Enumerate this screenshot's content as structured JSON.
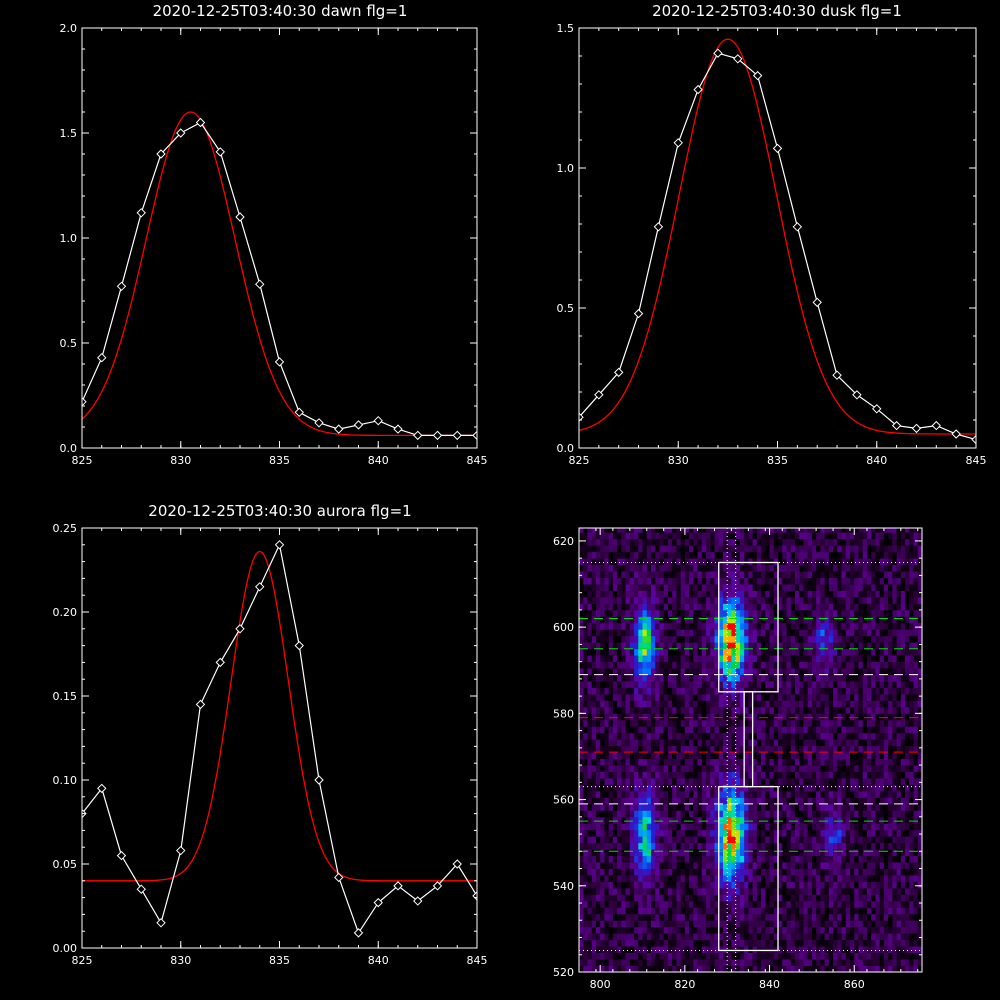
{
  "chart_data": [
    {
      "id": "dawn",
      "type": "line",
      "title": "2020-12-25T03:40:30 dawn flg=1",
      "xlim": [
        825,
        845
      ],
      "ylim": [
        0,
        2.0
      ],
      "xticks": [
        825,
        830,
        835,
        840,
        845
      ],
      "xtick_labels": [
        "825",
        "830",
        "835",
        "840",
        "845"
      ],
      "yticks": [
        0,
        0.5,
        1.0,
        1.5,
        2.0
      ],
      "ytick_labels": [
        "0.0",
        "0.5",
        "1.0",
        "1.5",
        "2.0"
      ],
      "series": [
        {
          "kind": "observed",
          "color": "#ffffff",
          "markers": "diamond",
          "x": [
            825,
            826,
            827,
            828,
            829,
            830,
            831,
            832,
            833,
            834,
            835,
            836,
            837,
            838,
            839,
            840,
            841,
            842,
            843,
            844,
            845
          ],
          "y": [
            0.22,
            0.43,
            0.77,
            1.12,
            1.4,
            1.5,
            1.55,
            1.41,
            1.1,
            0.78,
            0.41,
            0.17,
            0.12,
            0.09,
            0.11,
            0.13,
            0.09,
            0.06,
            0.06,
            0.06,
            0.06
          ]
        },
        {
          "kind": "fit",
          "color": "#ff0000",
          "gauss": {
            "amp": 1.54,
            "center": 830.5,
            "sigma": 2.25,
            "base": 0.06
          }
        }
      ]
    },
    {
      "id": "dusk",
      "type": "line",
      "title": "2020-12-25T03:40:30 dusk flg=1",
      "xlim": [
        825,
        845
      ],
      "ylim": [
        0,
        1.5
      ],
      "xticks": [
        825,
        830,
        835,
        840,
        845
      ],
      "xtick_labels": [
        "825",
        "830",
        "835",
        "840",
        "845"
      ],
      "yticks": [
        0,
        0.5,
        1.0,
        1.5
      ],
      "ytick_labels": [
        "0.0",
        "0.5",
        "1.0",
        "1.5"
      ],
      "series": [
        {
          "kind": "observed",
          "color": "#ffffff",
          "markers": "diamond",
          "x": [
            825,
            826,
            827,
            828,
            829,
            830,
            831,
            832,
            833,
            834,
            835,
            836,
            837,
            838,
            839,
            840,
            841,
            842,
            843,
            844,
            845
          ],
          "y": [
            0.11,
            0.19,
            0.27,
            0.48,
            0.79,
            1.09,
            1.28,
            1.41,
            1.39,
            1.33,
            1.07,
            0.79,
            0.52,
            0.26,
            0.19,
            0.14,
            0.08,
            0.07,
            0.08,
            0.05,
            0.03
          ]
        },
        {
          "kind": "fit",
          "color": "#ff0000",
          "gauss": {
            "amp": 1.41,
            "center": 832.5,
            "sigma": 2.45,
            "base": 0.05
          }
        }
      ]
    },
    {
      "id": "aurora",
      "type": "line",
      "title": "2020-12-25T03:40:30 aurora flg=1",
      "xlim": [
        825,
        845
      ],
      "ylim": [
        0,
        0.25
      ],
      "xticks": [
        825,
        830,
        835,
        840,
        845
      ],
      "xtick_labels": [
        "825",
        "830",
        "835",
        "840",
        "845"
      ],
      "yticks": [
        0,
        0.05,
        0.1,
        0.15,
        0.2,
        0.25
      ],
      "ytick_labels": [
        "0.00",
        "0.05",
        "0.10",
        "0.15",
        "0.20",
        "0.25"
      ],
      "series": [
        {
          "kind": "observed",
          "color": "#ffffff",
          "markers": "diamond",
          "x": [
            825,
            826,
            827,
            828,
            829,
            830,
            831,
            832,
            833,
            834,
            835,
            836,
            837,
            838,
            839,
            840,
            841,
            842,
            843,
            844,
            845
          ],
          "y": [
            0.08,
            0.095,
            0.055,
            0.035,
            0.015,
            0.058,
            0.145,
            0.17,
            0.19,
            0.215,
            0.24,
            0.18,
            0.1,
            0.042,
            0.009,
            0.027,
            0.037,
            0.028,
            0.037,
            0.05,
            0.031
          ]
        },
        {
          "kind": "fit",
          "color": "#ff0000",
          "gauss": {
            "amp": 0.196,
            "center": 834,
            "sigma": 1.45,
            "base": 0.04
          }
        }
      ]
    },
    {
      "id": "image",
      "type": "heatmap",
      "colormap": "rainbow-on-black",
      "xlim": [
        795,
        876
      ],
      "ylim": [
        520,
        623
      ],
      "xticks": [
        800,
        820,
        840,
        860
      ],
      "xtick_labels": [
        "800",
        "820",
        "840",
        "860"
      ],
      "yticks": [
        520,
        540,
        560,
        580,
        600,
        620
      ],
      "ytick_labels": [
        "520",
        "540",
        "560",
        "580",
        "600",
        "620"
      ],
      "blobs": [
        {
          "x": 810.5,
          "y": 596,
          "sx": 1.8,
          "sy": 6.5,
          "amp": 0.62
        },
        {
          "x": 831,
          "y": 597,
          "sx": 2.3,
          "sy": 6.5,
          "amp": 1.0
        },
        {
          "x": 853,
          "y": 597,
          "sx": 1.8,
          "sy": 4.5,
          "amp": 0.3
        },
        {
          "x": 810.5,
          "y": 552,
          "sx": 1.8,
          "sy": 6.5,
          "amp": 0.62
        },
        {
          "x": 831,
          "y": 552,
          "sx": 2.3,
          "sy": 7.5,
          "amp": 0.95
        },
        {
          "x": 855,
          "y": 552,
          "sx": 1.8,
          "sy": 4.5,
          "amp": 0.28
        }
      ],
      "boxes": [
        {
          "color": "#ffffff",
          "x0": 828,
          "x1": 842,
          "y0": 585,
          "y1": 615
        },
        {
          "color": "#ffffff",
          "x0": 834,
          "x1": 836,
          "y0": 563,
          "y1": 585
        },
        {
          "color": "#ffffff",
          "x0": 828,
          "x1": 842,
          "y0": 525,
          "y1": 563
        }
      ],
      "hlines": [
        {
          "y": 615,
          "color": "#ffffff",
          "style": "dotted"
        },
        {
          "y": 602,
          "color": "#00dd00",
          "style": "dashed"
        },
        {
          "y": 595,
          "color": "#00dd00",
          "style": "dashed"
        },
        {
          "y": 589,
          "color": "#ffffff",
          "style": "dashed"
        },
        {
          "y": 579,
          "color": "#ff0000",
          "style": "dashed"
        },
        {
          "y": 571,
          "color": "#ff0000",
          "style": "dashed"
        },
        {
          "y": 563,
          "color": "#ffffff",
          "style": "dotted"
        },
        {
          "y": 559,
          "color": "#ffffff",
          "style": "dashed"
        },
        {
          "y": 555,
          "color": "#00dd00",
          "style": "dashed"
        },
        {
          "y": 548,
          "color": "#00dd00",
          "style": "dashed"
        },
        {
          "y": 525,
          "color": "#ffffff",
          "style": "dotted"
        }
      ],
      "vlines": [
        {
          "x": 830,
          "color": "#ffffff",
          "style": "dotted"
        },
        {
          "x": 832,
          "color": "#ffffff",
          "style": "dotted"
        }
      ]
    }
  ]
}
